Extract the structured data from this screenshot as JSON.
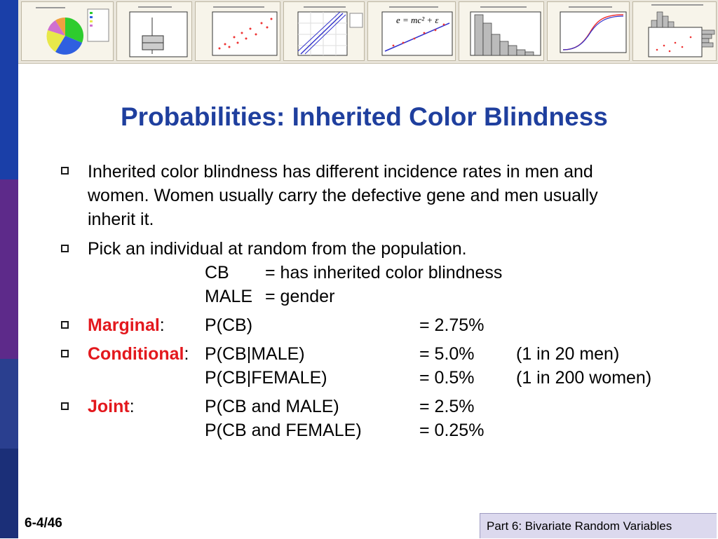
{
  "slide": {
    "title": "Probabilities: Inherited Color Blindness",
    "bullets": [
      {
        "lines": [
          "Inherited color blindness has different incidence rates in men and",
          "women.  Women usually carry the defective gene and men usually",
          "inherit it."
        ]
      },
      {
        "text": "Pick an individual at random from the population."
      }
    ],
    "definitions": [
      {
        "symbol": "CB",
        "definition": "= has inherited color blindness"
      },
      {
        "symbol": "MALE",
        "definition": "= gender"
      }
    ],
    "probabilities": {
      "marginal": {
        "label": "Marginal",
        "rows": [
          {
            "expr": "P(CB)",
            "value": "= 2.75%",
            "note": ""
          }
        ]
      },
      "conditional": {
        "label": "Conditional",
        "rows": [
          {
            "expr": "P(CB|MALE)",
            "value": "= 5.0%",
            "note": "(1 in 20 men)"
          },
          {
            "expr": "P(CB|FEMALE)",
            "value": "= 0.5%",
            "note": "(1 in 200 women)"
          }
        ]
      },
      "joint": {
        "label": "Joint",
        "rows": [
          {
            "expr": "P(CB and MALE)",
            "value": "= 2.5%",
            "note": ""
          },
          {
            "expr": "P(CB and FEMALE)",
            "value": "= 0.25%",
            "note": ""
          }
        ]
      }
    },
    "equation": "e = mc² + ε"
  },
  "footer": {
    "slide_number": "6-4/46",
    "section": "Part 6: Bivariate Random Variables"
  },
  "colors": {
    "title": "#1f3f9e",
    "emphasis": "#e3181d",
    "sidebar_top": "#1a3fa8",
    "sidebar_mid": "#5d2a8a",
    "sidebar_low": "#2a3f8f",
    "sidebar_bottom": "#1b2f78",
    "footer_box": "#dcd9ee"
  }
}
